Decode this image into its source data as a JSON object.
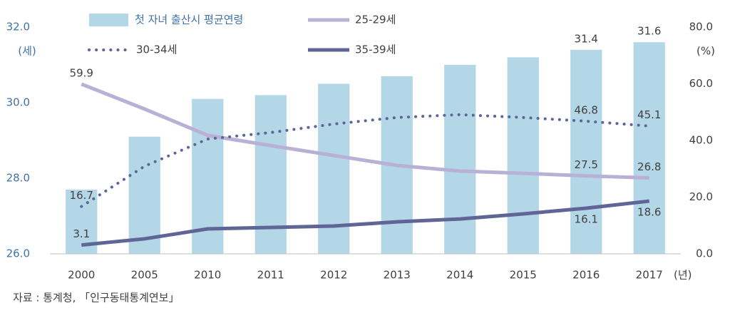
{
  "chart_data": {
    "type": "bar_line",
    "categories": [
      "2000",
      "2005",
      "2010",
      "2011",
      "2012",
      "2013",
      "2014",
      "2015",
      "2016",
      "2017"
    ],
    "x_unit": "(년)",
    "y_unit": "(세)",
    "y2_unit": "(%)",
    "source": "자료 : 통계청, 「인구동태통계연보」",
    "ylim": [
      26,
      32
    ],
    "yticks": [
      {
        "value": 26,
        "label": "26.0"
      },
      {
        "value": 28,
        "label": "28.0"
      },
      {
        "value": 30,
        "label": "30.0"
      },
      {
        "value": 32,
        "label": "32.0"
      }
    ],
    "y2lim": [
      0,
      80
    ],
    "y2ticks": [
      {
        "value": 0,
        "label": "0.0"
      },
      {
        "value": 20,
        "label": "20.0"
      },
      {
        "value": 40,
        "label": "40.0"
      },
      {
        "value": 60,
        "label": "60.0"
      },
      {
        "value": 80,
        "label": "80.0"
      }
    ],
    "grid": false,
    "series": [
      {
        "name": "첫 자녀 출산시 평균연령",
        "type": "bar",
        "color": "#b4d7e7",
        "values": [
          27.7,
          29.1,
          30.1,
          30.2,
          30.5,
          30.7,
          31.0,
          31.2,
          31.4,
          31.6
        ],
        "value_labels": [
          null,
          null,
          null,
          null,
          null,
          null,
          null,
          null,
          "31.4",
          "31.6"
        ]
      },
      {
        "name": "25-29세",
        "type": "line",
        "axis": "y2",
        "color": "#b9b0d6",
        "dash": "solid",
        "values": [
          59.9,
          51.1,
          41.8,
          38.2,
          34.7,
          31.2,
          29.2,
          28.4,
          27.5,
          26.8
        ],
        "value_labels": [
          "59.9",
          null,
          null,
          null,
          null,
          null,
          null,
          null,
          "27.5",
          "26.8"
        ]
      },
      {
        "name": "30-34세",
        "type": "line",
        "axis": "y2",
        "color": "#5b6597",
        "dash": "dotted",
        "values": [
          16.7,
          30.9,
          40.5,
          42.8,
          45.8,
          48.1,
          49.1,
          48.1,
          46.8,
          45.1
        ],
        "value_labels": [
          "16.7",
          null,
          null,
          null,
          null,
          null,
          null,
          null,
          "46.8",
          "45.1"
        ]
      },
      {
        "name": "35-39세",
        "type": "line",
        "axis": "y2",
        "color": "#5f6696",
        "dash": "solid",
        "values": [
          3.1,
          5.3,
          8.8,
          9.3,
          9.8,
          11.3,
          12.3,
          14.1,
          16.1,
          18.6
        ],
        "value_labels": [
          "3.1",
          null,
          null,
          null,
          null,
          null,
          null,
          null,
          "16.1",
          "18.6"
        ]
      }
    ]
  }
}
